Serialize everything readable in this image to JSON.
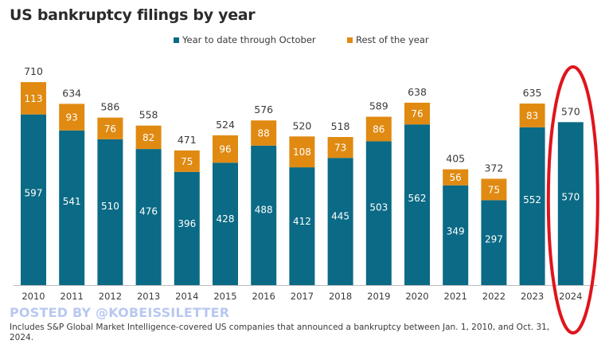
{
  "colors": {
    "ytd": "#0b6a85",
    "rest": "#e08a12",
    "highlight": "#e0141c",
    "axis": "#bdbdbd"
  },
  "chart_data": {
    "type": "bar",
    "stacked": true,
    "title": "US bankruptcy filings by year",
    "xlabel": "",
    "ylabel": "",
    "ylim": [
      0,
      720
    ],
    "grid": false,
    "legend_position": "top-center",
    "categories": [
      "2010",
      "2011",
      "2012",
      "2013",
      "2014",
      "2015",
      "2016",
      "2017",
      "2018",
      "2019",
      "2020",
      "2021",
      "2022",
      "2023",
      "2024"
    ],
    "series": [
      {
        "name": "Year to date through October",
        "color": "#0b6a85",
        "values": [
          597,
          541,
          510,
          476,
          396,
          428,
          488,
          412,
          445,
          503,
          562,
          349,
          297,
          552,
          570
        ]
      },
      {
        "name": "Rest of the year",
        "color": "#e08a12",
        "values": [
          113,
          93,
          76,
          82,
          75,
          96,
          88,
          108,
          73,
          86,
          76,
          56,
          75,
          83,
          null
        ]
      }
    ],
    "totals": [
      710,
      634,
      586,
      558,
      471,
      524,
      576,
      520,
      518,
      589,
      638,
      405,
      372,
      635,
      570
    ],
    "annotations": [
      {
        "type": "ellipse-highlight",
        "target_category": "2024",
        "color": "#e0141c"
      }
    ]
  },
  "watermark": "POSTED BY @KOBEISSILETTER",
  "footnote": "Includes S&P Global Market Intelligence-covered US companies that announced a bankruptcy between Jan. 1, 2010, and Oct. 31, 2024."
}
